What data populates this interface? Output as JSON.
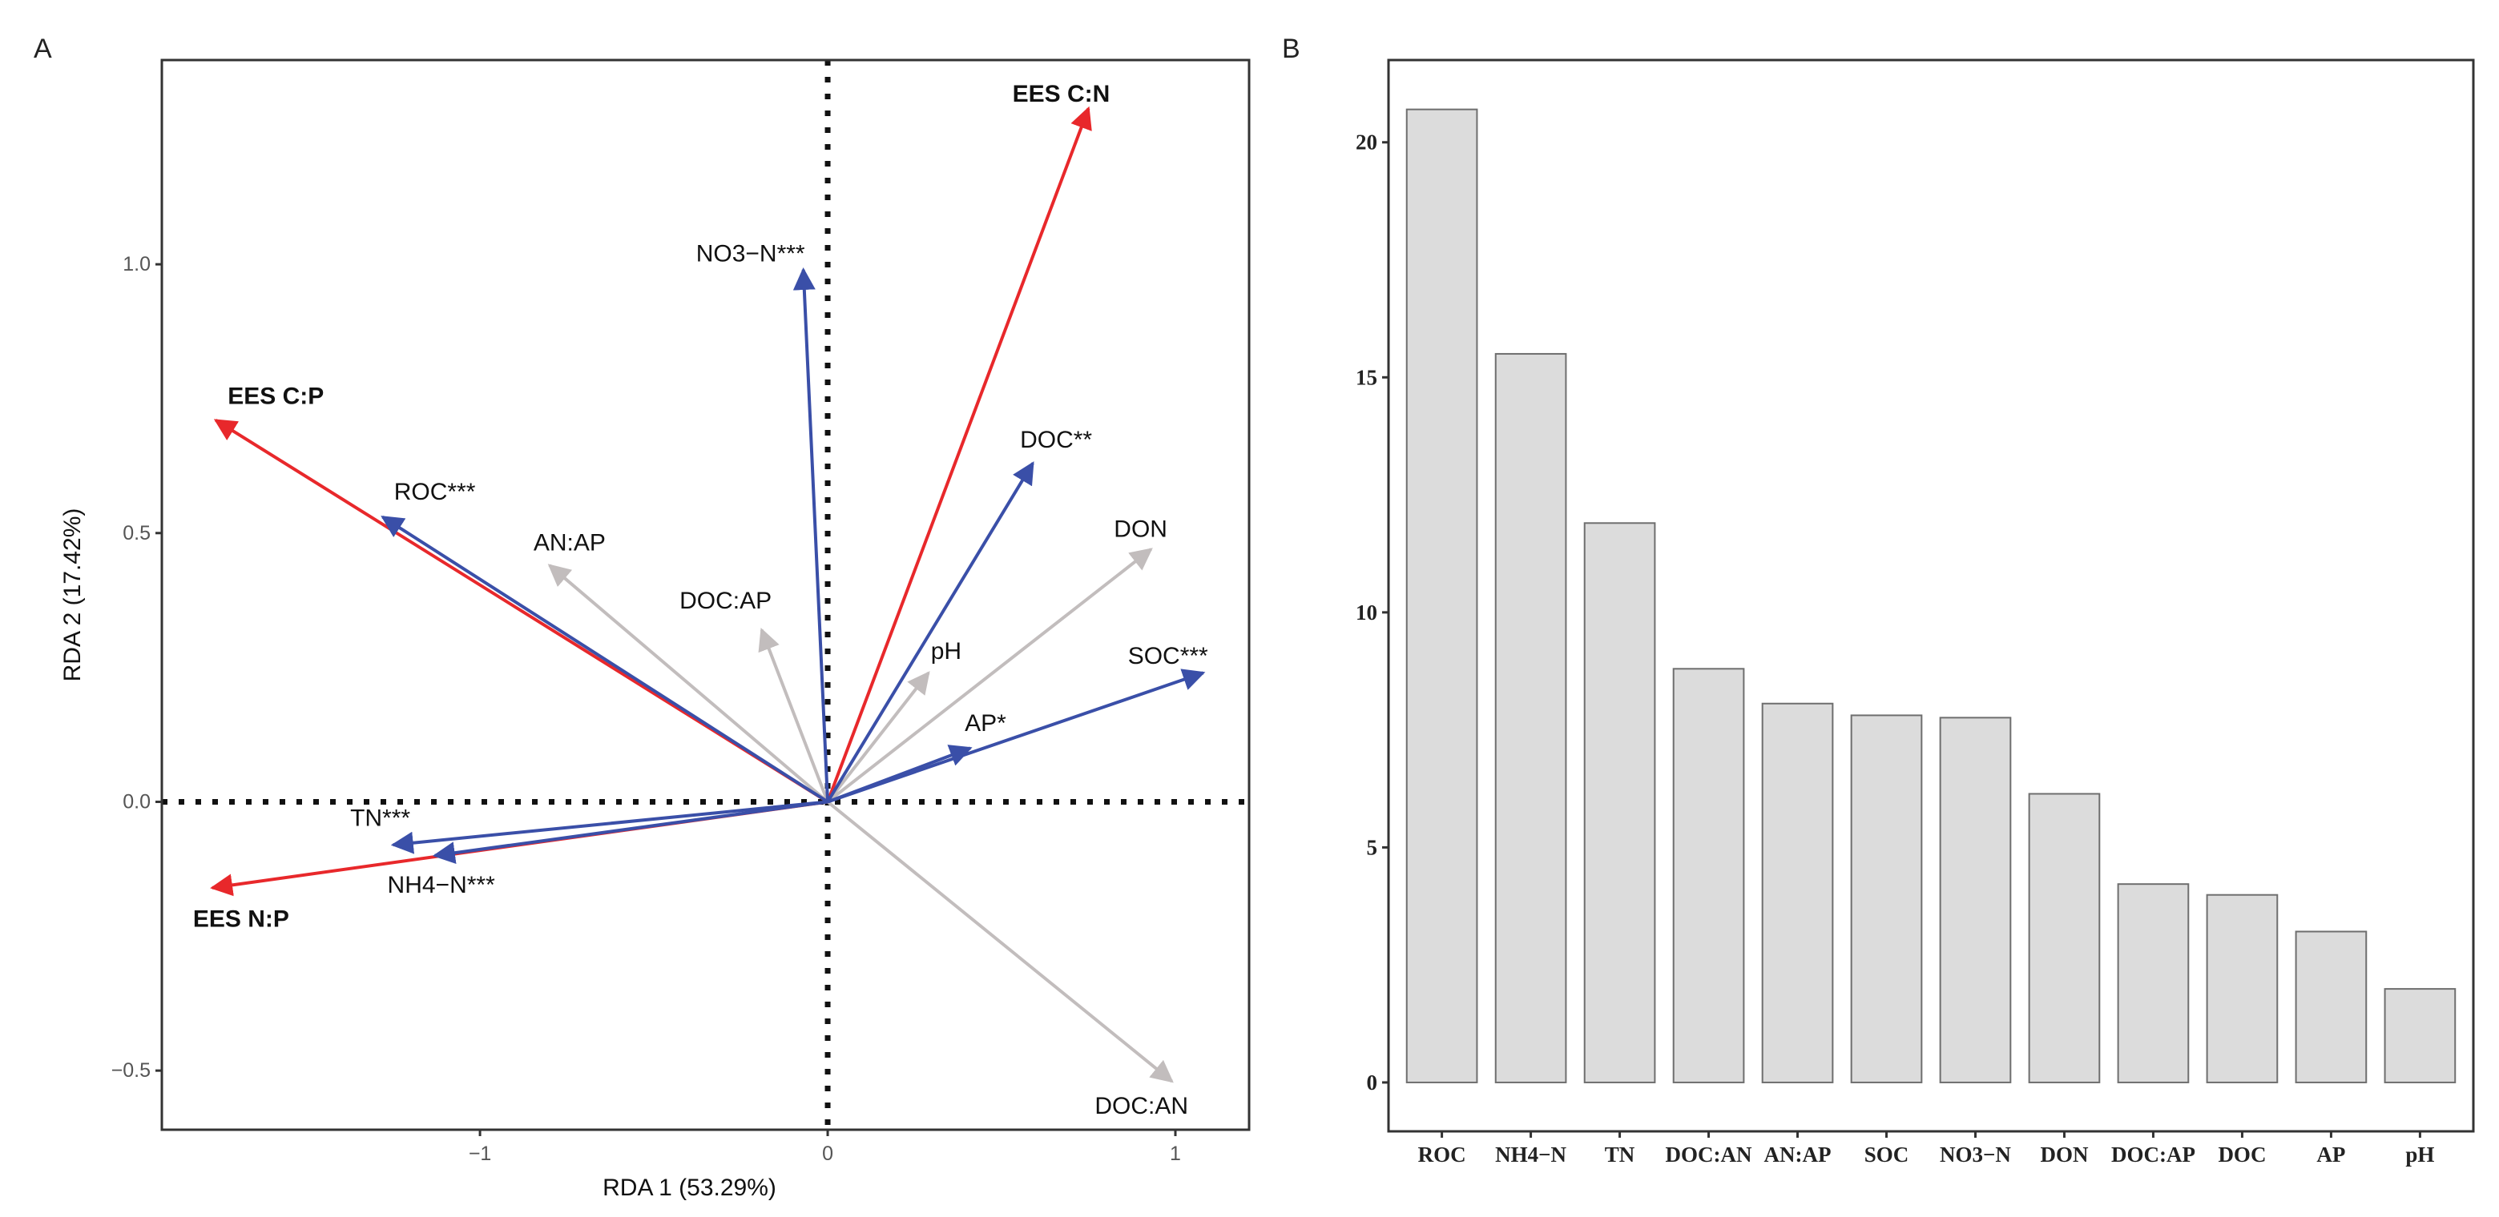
{
  "chart_data": [
    {
      "panel_label": "A",
      "type": "biplot-arrows",
      "xlabel": "RDA 1 (53.29%)",
      "ylabel": "RDA 2 (17.42%)",
      "xlim": [
        -1.915,
        1.212
      ],
      "ylim": [
        -0.61,
        1.38
      ],
      "xticks": [
        {
          "value": -1,
          "label": "−1"
        },
        {
          "value": 0,
          "label": "0"
        },
        {
          "value": 1,
          "label": "1"
        }
      ],
      "yticks": [
        {
          "value": -0.5,
          "label": "−0.5"
        },
        {
          "value": 0,
          "label": "0.0"
        },
        {
          "value": 0.5,
          "label": "0.5"
        },
        {
          "value": 1.0,
          "label": "1.0"
        }
      ],
      "reference_lines": "dotted lines at x=0 and y=0",
      "colors": {
        "response": "#e8282b",
        "significant": "#3a4fa8",
        "non_significant": "#c2bdbd"
      },
      "arrows": [
        {
          "label": "EES C:N",
          "x": 0.75,
          "y": 1.29,
          "group": "response"
        },
        {
          "label": "EES C:P",
          "x": -1.76,
          "y": 0.71,
          "group": "response"
        },
        {
          "label": "EES N:P",
          "x": -1.77,
          "y": -0.16,
          "group": "response"
        },
        {
          "label": "NO3−N***",
          "x": -0.07,
          "y": 0.99,
          "group": "significant"
        },
        {
          "label": "ROC***",
          "x": -1.28,
          "y": 0.53,
          "group": "significant"
        },
        {
          "label": "DOC**",
          "x": 0.59,
          "y": 0.63,
          "group": "significant"
        },
        {
          "label": "SOC***",
          "x": 1.08,
          "y": 0.24,
          "group": "significant"
        },
        {
          "label": "AP*",
          "x": 0.41,
          "y": 0.1,
          "group": "significant"
        },
        {
          "label": "TN***",
          "x": -1.25,
          "y": -0.08,
          "group": "significant"
        },
        {
          "label": "NH4−N***",
          "x": -1.13,
          "y": -0.1,
          "group": "significant"
        },
        {
          "label": "AN:AP",
          "x": -0.8,
          "y": 0.44,
          "group": "non_significant"
        },
        {
          "label": "DOC:AP",
          "x": -0.19,
          "y": 0.32,
          "group": "non_significant"
        },
        {
          "label": "DON",
          "x": 0.93,
          "y": 0.47,
          "group": "non_significant"
        },
        {
          "label": "pH",
          "x": 0.29,
          "y": 0.24,
          "group": "non_significant"
        },
        {
          "label": "DOC:AN",
          "x": 0.99,
          "y": -0.52,
          "group": "non_significant"
        }
      ]
    },
    {
      "panel_label": "B",
      "type": "bar",
      "xlabel": "",
      "ylabel": "",
      "ylim": [
        -1.04,
        21.75
      ],
      "yticks": [
        0,
        5,
        10,
        15,
        20
      ],
      "categories": [
        "ROC",
        "NH4−N",
        "TN",
        "DOC:AN",
        "AN:AP",
        "SOC",
        "NO3−N",
        "DON",
        "DOC:AP",
        "DOC",
        "AP",
        "pH"
      ],
      "values": [
        20.7,
        15.5,
        11.9,
        8.8,
        8.06,
        7.81,
        7.76,
        6.14,
        4.22,
        3.99,
        3.21,
        1.99
      ],
      "colors": {
        "bar_fill": "#dcdcdc",
        "bar_stroke": "#6e6e6e"
      }
    }
  ]
}
